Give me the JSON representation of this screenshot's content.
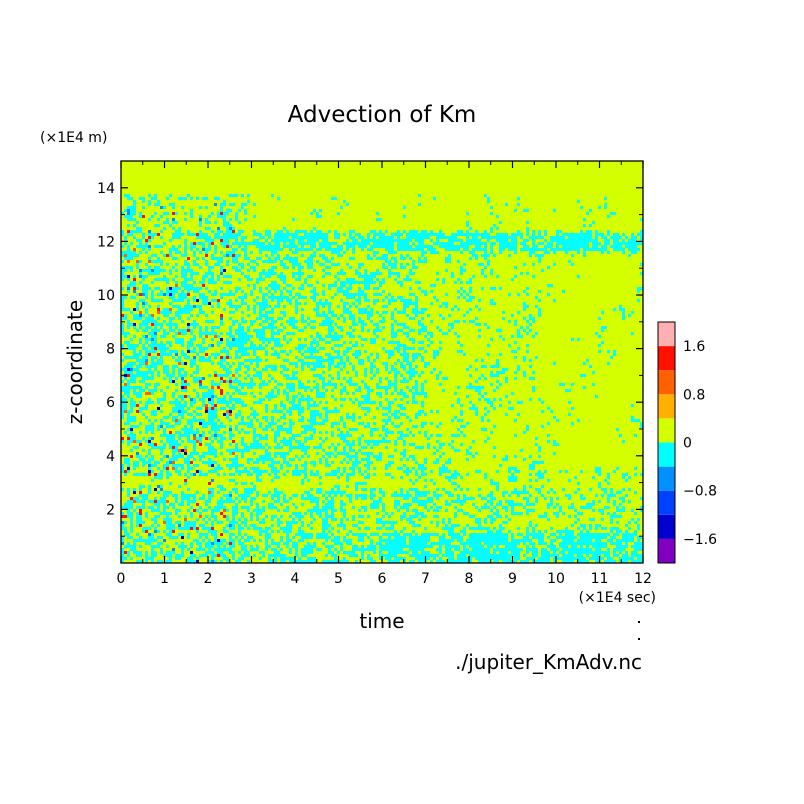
{
  "chart_data": {
    "type": "heatmap",
    "title": "Advection of Km",
    "xlabel": "time",
    "ylabel": "z-coordinate",
    "x_unit": "(×1E4 sec)",
    "y_unit": "(×1E4 m)",
    "source": "./jupiter_KmAdv.nc",
    "xlim": [
      0,
      12
    ],
    "ylim": [
      0,
      15
    ],
    "x_ticks": [
      "0",
      "1",
      "2",
      "3",
      "4",
      "5",
      "6",
      "7",
      "8",
      "9",
      "10",
      "11",
      "12"
    ],
    "y_ticks": [
      "2",
      "4",
      "6",
      "8",
      "10",
      "12",
      "14"
    ],
    "colorbar": {
      "tick_labels": [
        "1.6",
        "0.8",
        "0",
        "−0.8",
        "−1.6"
      ],
      "tick_values": [
        1.6,
        0.8,
        0,
        -0.8,
        -1.6
      ],
      "levels": [
        -2.0,
        -1.6,
        -1.2,
        -0.8,
        -0.4,
        0,
        0.4,
        0.8,
        1.2,
        1.6,
        2.0
      ],
      "colors": [
        "#8000c0",
        "#0000d0",
        "#0040ff",
        "#0090ff",
        "#00ffff",
        "#d4ff00",
        "#ffb000",
        "#ff6000",
        "#ff1000",
        "#ffb0b0"
      ]
    },
    "background_color": "#d4ff00",
    "dominant_negative_color": "#00ffff"
  }
}
